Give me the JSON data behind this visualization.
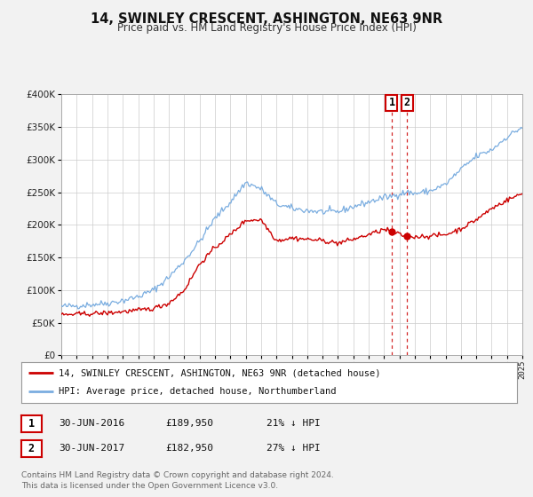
{
  "title": "14, SWINLEY CRESCENT, ASHINGTON, NE63 9NR",
  "subtitle": "Price paid vs. HM Land Registry's House Price Index (HPI)",
  "legend_line1": "14, SWINLEY CRESCENT, ASHINGTON, NE63 9NR (detached house)",
  "legend_line2": "HPI: Average price, detached house, Northumberland",
  "annotation_text": "Contains HM Land Registry data © Crown copyright and database right 2024.\nThis data is licensed under the Open Government Licence v3.0.",
  "table_rows": [
    {
      "num": "1",
      "date": "30-JUN-2016",
      "price": "£189,950",
      "hpi": "21% ↓ HPI"
    },
    {
      "num": "2",
      "date": "30-JUN-2017",
      "price": "£182,950",
      "hpi": "27% ↓ HPI"
    }
  ],
  "vline1_x": 2016.5,
  "vline2_x": 2017.5,
  "marker1_x": 2016.5,
  "marker1_y_red": 189950,
  "marker2_x": 2017.5,
  "marker2_y_red": 182950,
  "ylim": [
    0,
    400000
  ],
  "xlim_start": 1995,
  "xlim_end": 2025,
  "red_color": "#cc0000",
  "blue_color": "#7aade0",
  "background_color": "#f2f2f2",
  "plot_bg_color": "#ffffff",
  "grid_color": "#cccccc",
  "hpi_anchors_x": [
    1995,
    1996,
    1997,
    1998,
    1999,
    2000,
    2001,
    2002,
    2003,
    2004,
    2005,
    2006,
    2007,
    2008,
    2009,
    2010,
    2011,
    2012,
    2013,
    2014,
    2015,
    2016,
    2016.5,
    2017,
    2017.5,
    2018,
    2019,
    2020,
    2021,
    2022,
    2023,
    2024,
    2025
  ],
  "hpi_anchors_y": [
    75000,
    76000,
    78000,
    80000,
    84000,
    90000,
    100000,
    120000,
    145000,
    175000,
    210000,
    235000,
    265000,
    255000,
    232000,
    225000,
    222000,
    220000,
    220000,
    228000,
    235000,
    242000,
    244000,
    248000,
    250000,
    248000,
    252000,
    262000,
    285000,
    305000,
    315000,
    335000,
    350000
  ],
  "red_anchors_x": [
    1995,
    1996,
    1997,
    1998,
    1999,
    2000,
    2001,
    2002,
    2003,
    2004,
    2005,
    2006,
    2007,
    2008,
    2009,
    2010,
    2011,
    2012,
    2013,
    2014,
    2015,
    2016,
    2016.5,
    2017,
    2017.5,
    2018,
    2019,
    2020,
    2021,
    2022,
    2023,
    2024,
    2025
  ],
  "red_anchors_y": [
    62000,
    63000,
    64000,
    65000,
    67000,
    69000,
    72000,
    80000,
    100000,
    140000,
    165000,
    185000,
    207000,
    208000,
    176000,
    180000,
    178000,
    176000,
    172000,
    178000,
    185000,
    193000,
    189950,
    185000,
    182950,
    182000,
    183000,
    185000,
    194000,
    208000,
    225000,
    238000,
    248000
  ]
}
